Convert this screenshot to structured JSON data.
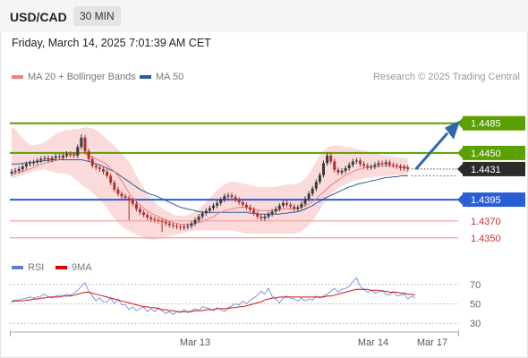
{
  "header": {
    "pair": "USD/CAD",
    "timeframe": "30 MIN"
  },
  "datetime": "Friday, March 14, 2025 7:01:39 AM CET",
  "legend": {
    "main": [
      {
        "label": "MA 20 + Bollinger Bands",
        "color": "#f08080"
      },
      {
        "label": "MA 50",
        "color": "#2e5c9a"
      }
    ],
    "rsi": [
      {
        "label": "RSI",
        "color": "#5b7fd6"
      },
      {
        "label": "9MA",
        "color": "#e00000"
      }
    ]
  },
  "credit": "Research © 2025 Trading Central",
  "colors": {
    "up": "#3a3a3a",
    "down": "#b03030",
    "band": "#f9d3d3",
    "ma20": "#f08080",
    "ma50": "#2e5c9a",
    "resistance": "#5aa000",
    "pivot": "#2a5ed6",
    "support": "#f0a0a0",
    "arrow": "#2c66b0"
  },
  "chart_data": [
    {
      "type": "candlestick",
      "xaxis_ticks": [
        "Mar 13",
        "Mar 14",
        "Mar 17"
      ],
      "ylim": [
        1.4335,
        1.453
      ],
      "last_price": 1.4431,
      "last_price_label": "1.4431",
      "levels": [
        {
          "value": 1.4485,
          "label": "1.4485",
          "kind": "resistance",
          "style": "box"
        },
        {
          "value": 1.445,
          "label": "1.4450",
          "kind": "resistance",
          "style": "box"
        },
        {
          "value": 1.4395,
          "label": "1.4395",
          "kind": "pivot",
          "style": "box"
        },
        {
          "value": 1.437,
          "label": "1.4370",
          "kind": "support",
          "style": "text"
        },
        {
          "value": 1.435,
          "label": "1.4350",
          "kind": "support",
          "style": "text"
        }
      ],
      "projected_target": 1.4485,
      "close": [
        1.4428,
        1.4429,
        1.4431,
        1.4434,
        1.4437,
        1.4438,
        1.4439,
        1.4441,
        1.4443,
        1.4444,
        1.4442,
        1.4444,
        1.4446,
        1.4445,
        1.4447,
        1.4449,
        1.4448,
        1.4447,
        1.4457,
        1.4468,
        1.4452,
        1.4443,
        1.4435,
        1.4433,
        1.4431,
        1.4428,
        1.4423,
        1.4415,
        1.4407,
        1.4402,
        1.4399,
        1.4397,
        1.4394,
        1.439,
        1.4384,
        1.438,
        1.4377,
        1.4374,
        1.4372,
        1.4371,
        1.437,
        1.4369,
        1.4367,
        1.4365,
        1.4364,
        1.4363,
        1.4362,
        1.4363,
        1.4364,
        1.4367,
        1.4371,
        1.4375,
        1.4379,
        1.4382,
        1.4385,
        1.4388,
        1.4391,
        1.4395,
        1.4399,
        1.44,
        1.4398,
        1.4395,
        1.4392,
        1.4389,
        1.4386,
        1.4383,
        1.4379,
        1.4375,
        1.4373,
        1.4375,
        1.4378,
        1.4381,
        1.4384,
        1.4388,
        1.4391,
        1.4389,
        1.4387,
        1.4384,
        1.4386,
        1.439,
        1.4396,
        1.4402,
        1.4408,
        1.4416,
        1.4424,
        1.4438,
        1.4447,
        1.444,
        1.443,
        1.4427,
        1.4429,
        1.4432,
        1.4436,
        1.444,
        1.4441,
        1.4437,
        1.4435,
        1.4433,
        1.4434,
        1.4436,
        1.4438,
        1.4437,
        1.4439,
        1.4436,
        1.4435,
        1.4434,
        1.4432,
        1.4433,
        1.4431
      ],
      "ma20": [
        1.4425,
        1.4426,
        1.4427,
        1.4428,
        1.443,
        1.4431,
        1.4433,
        1.4435,
        1.4436,
        1.4438,
        1.4439,
        1.444,
        1.4441,
        1.4442,
        1.4444,
        1.4446,
        1.4447,
        1.4448,
        1.4449,
        1.445,
        1.4449,
        1.4447,
        1.4445,
        1.4443,
        1.4441,
        1.4439,
        1.4436,
        1.4432,
        1.4428,
        1.4423,
        1.4417,
        1.441,
        1.4403,
        1.4397,
        1.4393,
        1.4389,
        1.4385,
        1.4382,
        1.4379,
        1.4377,
        1.4375,
        1.4373,
        1.4371,
        1.4369,
        1.4368,
        1.4367,
        1.4366,
        1.4366,
        1.4366,
        1.4366,
        1.4367,
        1.4368,
        1.4369,
        1.4371,
        1.4373,
        1.4375,
        1.4378,
        1.438,
        1.4382,
        1.4383,
        1.4384,
        1.4385,
        1.4386,
        1.4386,
        1.4386,
        1.4385,
        1.4384,
        1.4383,
        1.4382,
        1.4382,
        1.4382,
        1.4382,
        1.4383,
        1.4383,
        1.4384,
        1.4384,
        1.4384,
        1.4384,
        1.4385,
        1.4386,
        1.4388,
        1.439,
        1.4393,
        1.4396,
        1.44,
        1.4404,
        1.4408,
        1.4412,
        1.4415,
        1.4418,
        1.4421,
        1.4424,
        1.4426,
        1.4428,
        1.443,
        1.4431,
        1.4432,
        1.4433,
        1.4433,
        1.4434,
        1.4434,
        1.4435,
        1.4435,
        1.4435,
        1.4435,
        1.4435,
        1.4434,
        1.4434,
        1.4434
      ],
      "bb_upper": [
        1.448,
        1.4478,
        1.4472,
        1.4467,
        1.4463,
        1.446,
        1.4459,
        1.446,
        1.4461,
        1.4463,
        1.4466,
        1.4469,
        1.4472,
        1.4474,
        1.4476,
        1.4477,
        1.4477,
        1.4478,
        1.4478,
        1.4479,
        1.448,
        1.448,
        1.4479,
        1.4477,
        1.4474,
        1.447,
        1.4466,
        1.4462,
        1.4458,
        1.4454,
        1.445,
        1.4445,
        1.444,
        1.4432,
        1.4424,
        1.4416,
        1.4409,
        1.4402,
        1.4396,
        1.4392,
        1.4388,
        1.4385,
        1.4382,
        1.438,
        1.4378,
        1.4376,
        1.4376,
        1.4376,
        1.4377,
        1.4379,
        1.4381,
        1.4384,
        1.4388,
        1.4392,
        1.4397,
        1.4401,
        1.4406,
        1.441,
        1.4413,
        1.4415,
        1.4416,
        1.4416,
        1.4415,
        1.4414,
        1.4413,
        1.4412,
        1.4411,
        1.441,
        1.441,
        1.441,
        1.441,
        1.441,
        1.441,
        1.4411,
        1.4412,
        1.4413,
        1.4413,
        1.4413,
        1.4414,
        1.4416,
        1.442,
        1.4425,
        1.4432,
        1.444,
        1.4448,
        1.4453,
        1.4456,
        1.4458,
        1.4459,
        1.4459,
        1.4458,
        1.4457,
        1.4457,
        1.4456,
        1.4455,
        1.4454,
        1.4453,
        1.4452,
        1.4451,
        1.445,
        1.4449,
        1.4448,
        1.4447,
        1.4447,
        1.4446,
        1.4445,
        1.4445,
        1.4444,
        1.4444
      ],
      "bb_lower": [
        1.442,
        1.4421,
        1.4423,
        1.4424,
        1.4426,
        1.4427,
        1.4428,
        1.4429,
        1.443,
        1.4431,
        1.4429,
        1.4428,
        1.4427,
        1.4426,
        1.4426,
        1.4426,
        1.4423,
        1.442,
        1.4417,
        1.4413,
        1.441,
        1.4407,
        1.4403,
        1.4399,
        1.4395,
        1.439,
        1.4385,
        1.4379,
        1.4373,
        1.4368,
        1.4364,
        1.4361,
        1.4358,
        1.4356,
        1.4354,
        1.4352,
        1.435,
        1.4349,
        1.4348,
        1.4348,
        1.4349,
        1.435,
        1.4351,
        1.4352,
        1.4353,
        1.4354,
        1.4355,
        1.4356,
        1.4357,
        1.4358,
        1.4359,
        1.4359,
        1.4359,
        1.4359,
        1.4359,
        1.4359,
        1.4359,
        1.4359,
        1.4359,
        1.4359,
        1.4359,
        1.4358,
        1.4357,
        1.4356,
        1.4355,
        1.4355,
        1.4355,
        1.4355,
        1.4355,
        1.4355,
        1.4355,
        1.4355,
        1.4355,
        1.4355,
        1.4355,
        1.4355,
        1.4355,
        1.4355,
        1.4356,
        1.4358,
        1.4361,
        1.4365,
        1.437,
        1.4376,
        1.4383,
        1.439,
        1.4396,
        1.4401,
        1.4405,
        1.4408,
        1.4411,
        1.4413,
        1.4415,
        1.4417,
        1.4418,
        1.4419,
        1.442,
        1.4421,
        1.4421,
        1.4422,
        1.4422,
        1.4423,
        1.4423,
        1.4423,
        1.4424,
        1.4424,
        1.4424,
        1.4424,
        1.4424
      ],
      "ma50": [
        1.4437,
        1.4437,
        1.4437,
        1.4438,
        1.4438,
        1.4439,
        1.4439,
        1.444,
        1.444,
        1.4441,
        1.4441,
        1.4442,
        1.4442,
        1.4442,
        1.4442,
        1.4442,
        1.4442,
        1.4442,
        1.4442,
        1.4442,
        1.4441,
        1.444,
        1.4439,
        1.4437,
        1.4436,
        1.4434,
        1.4432,
        1.443,
        1.4428,
        1.4425,
        1.4422,
        1.4419,
        1.4416,
        1.4413,
        1.441,
        1.4407,
        1.4405,
        1.4403,
        1.4401,
        1.44,
        1.4398,
        1.4396,
        1.4394,
        1.4392,
        1.439,
        1.4388,
        1.4386,
        1.4385,
        1.4384,
        1.4383,
        1.4382,
        1.4381,
        1.438,
        1.438,
        1.438,
        1.438,
        1.438,
        1.438,
        1.438,
        1.438,
        1.438,
        1.438,
        1.438,
        1.438,
        1.438,
        1.4379,
        1.4379,
        1.4378,
        1.4378,
        1.4378,
        1.4378,
        1.4378,
        1.4378,
        1.4378,
        1.4379,
        1.4379,
        1.438,
        1.438,
        1.4381,
        1.4382,
        1.4384,
        1.4386,
        1.4388,
        1.4391,
        1.4393,
        1.4396,
        1.4398,
        1.44,
        1.4402,
        1.4404,
        1.4406,
        1.4408,
        1.441,
        1.4411,
        1.4413,
        1.4414,
        1.4415,
        1.4416,
        1.4417,
        1.4418,
        1.4419,
        1.442,
        1.4421,
        1.4421,
        1.4422,
        1.4422,
        1.4423,
        1.4423,
        1.4423
      ]
    },
    {
      "type": "line",
      "title": "RSI",
      "ylim": [
        20,
        80
      ],
      "yticks": [
        70,
        50,
        30
      ],
      "rsi": [
        53,
        54,
        54,
        55,
        56,
        57,
        56,
        57,
        58,
        60,
        57,
        56,
        58,
        59,
        58,
        60,
        59,
        61,
        64,
        68,
        72,
        63,
        58,
        53,
        56,
        52,
        52,
        56,
        50,
        55,
        49,
        49,
        44,
        47,
        43,
        45,
        47,
        42,
        45,
        42,
        46,
        43,
        40,
        42,
        39,
        42,
        41,
        44,
        41,
        43,
        45,
        43,
        47,
        46,
        45,
        43,
        46,
        44,
        42,
        46,
        48,
        50,
        49,
        53,
        50,
        54,
        56,
        59,
        63,
        60,
        66,
        58,
        55,
        51,
        56,
        58,
        56,
        55,
        53,
        56,
        53,
        55,
        54,
        58,
        56,
        58,
        60,
        63,
        66,
        62,
        65,
        66,
        68,
        73,
        77,
        68,
        65,
        62,
        64,
        61,
        62,
        64,
        60,
        59,
        63,
        58,
        59,
        60,
        55,
        58,
        56
      ],
      "ma9": [
        52,
        53,
        53,
        53,
        54,
        54,
        55,
        55,
        56,
        56,
        57,
        57,
        57,
        57,
        58,
        58,
        58,
        59,
        60,
        61,
        62,
        62,
        61,
        60,
        59,
        58,
        57,
        56,
        55,
        54,
        53,
        52,
        51,
        50,
        49,
        48,
        47,
        47,
        46,
        46,
        45,
        44,
        44,
        43,
        43,
        42,
        42,
        42,
        42,
        42,
        43,
        43,
        43,
        44,
        44,
        44,
        45,
        45,
        45,
        45,
        46,
        46,
        47,
        47,
        48,
        49,
        50,
        51,
        52,
        54,
        55,
        56,
        56,
        57,
        57,
        57,
        57,
        57,
        57,
        57,
        57,
        57,
        57,
        57,
        57,
        57,
        58,
        58,
        59,
        60,
        61,
        62,
        63,
        64,
        65,
        65,
        65,
        65,
        64,
        64,
        64,
        63,
        63,
        62,
        62,
        62,
        61,
        61,
        60,
        60,
        59
      ]
    }
  ]
}
